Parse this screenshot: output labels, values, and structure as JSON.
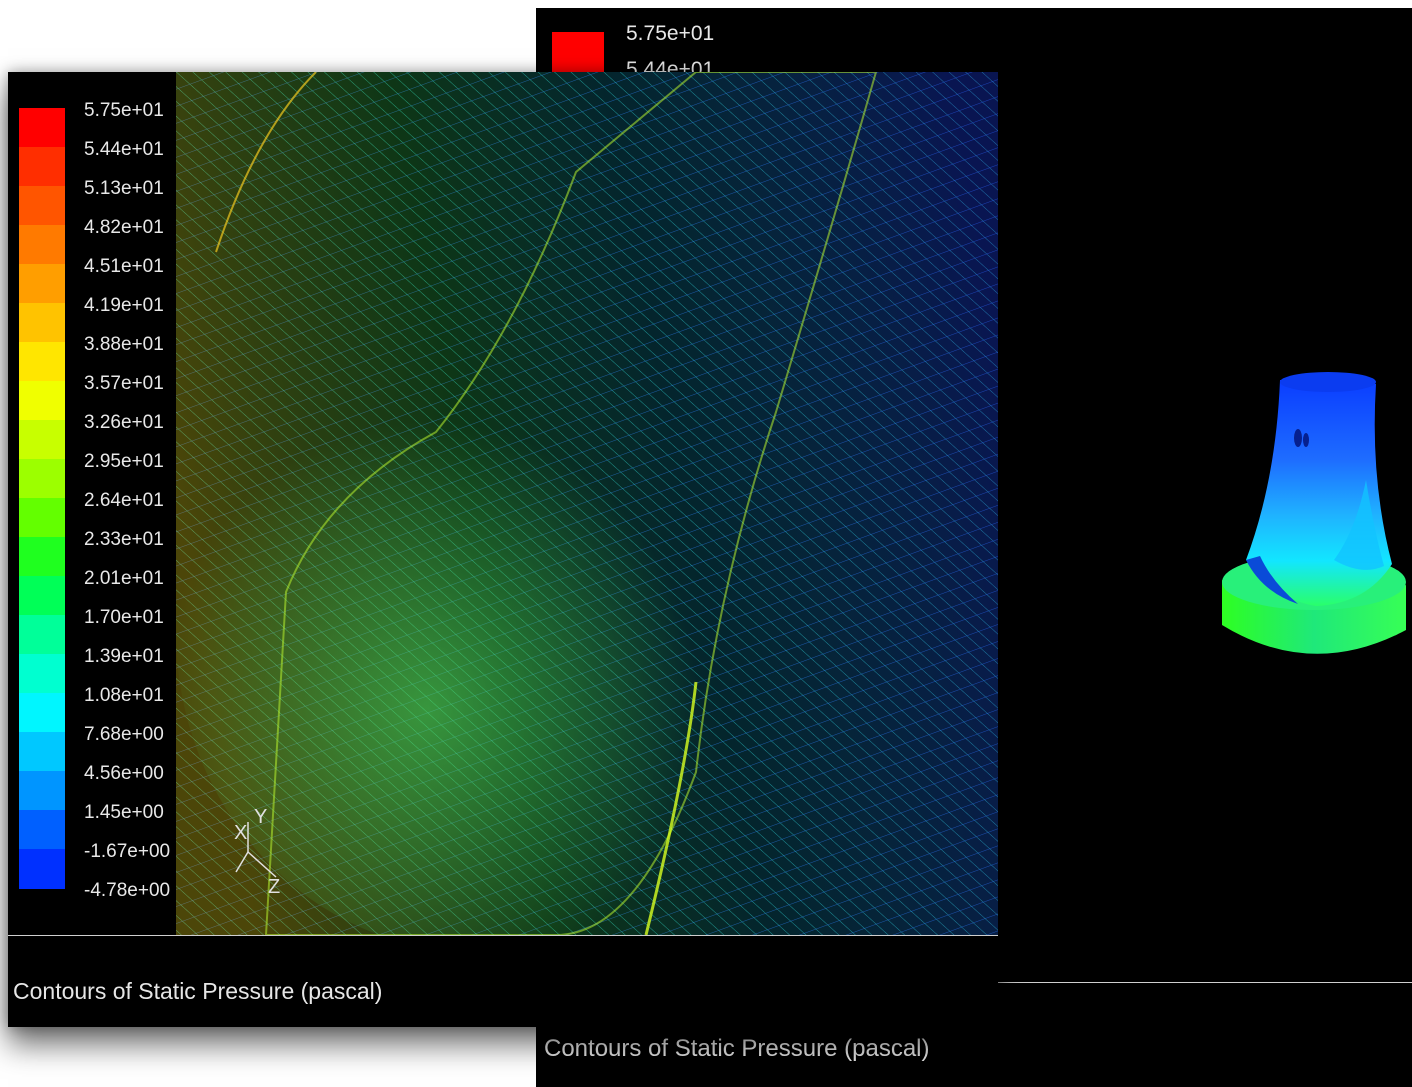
{
  "back_window": {
    "legend_top_value": "5.75e+01",
    "legend_second_value": "5.44e+01",
    "caption": "Contours of Static Pressure (pascal)"
  },
  "front_window": {
    "caption": "Contours of Static Pressure (pascal)",
    "legend": [
      {
        "label": "5.75e+01",
        "color": "#ff0000"
      },
      {
        "label": "5.44e+01",
        "color": "#ff2e00"
      },
      {
        "label": "5.13e+01",
        "color": "#ff5500"
      },
      {
        "label": "4.82e+01",
        "color": "#ff7a00"
      },
      {
        "label": "4.51e+01",
        "color": "#ff9e00"
      },
      {
        "label": "4.19e+01",
        "color": "#ffc300"
      },
      {
        "label": "3.88e+01",
        "color": "#ffe600"
      },
      {
        "label": "3.57e+01",
        "color": "#f0ff00"
      },
      {
        "label": "3.26e+01",
        "color": "#c8ff00"
      },
      {
        "label": "2.95e+01",
        "color": "#9cff00"
      },
      {
        "label": "2.64e+01",
        "color": "#63ff00"
      },
      {
        "label": "2.33e+01",
        "color": "#1fff1f"
      },
      {
        "label": "2.01e+01",
        "color": "#00ff57"
      },
      {
        "label": "1.70e+01",
        "color": "#00ff99"
      },
      {
        "label": "1.39e+01",
        "color": "#00ffd0"
      },
      {
        "label": "1.08e+01",
        "color": "#00f6ff"
      },
      {
        "label": "7.68e+00",
        "color": "#00c8ff"
      },
      {
        "label": "4.56e+00",
        "color": "#0095ff"
      },
      {
        "label": "1.45e+00",
        "color": "#0060ff"
      },
      {
        "label": "-1.67e+00",
        "color": "#0030ff"
      },
      {
        "label": "-4.78e+00",
        "color": "#0000ff"
      }
    ],
    "axis_labels": {
      "x": "X",
      "y": "Y",
      "z": "Z"
    }
  }
}
